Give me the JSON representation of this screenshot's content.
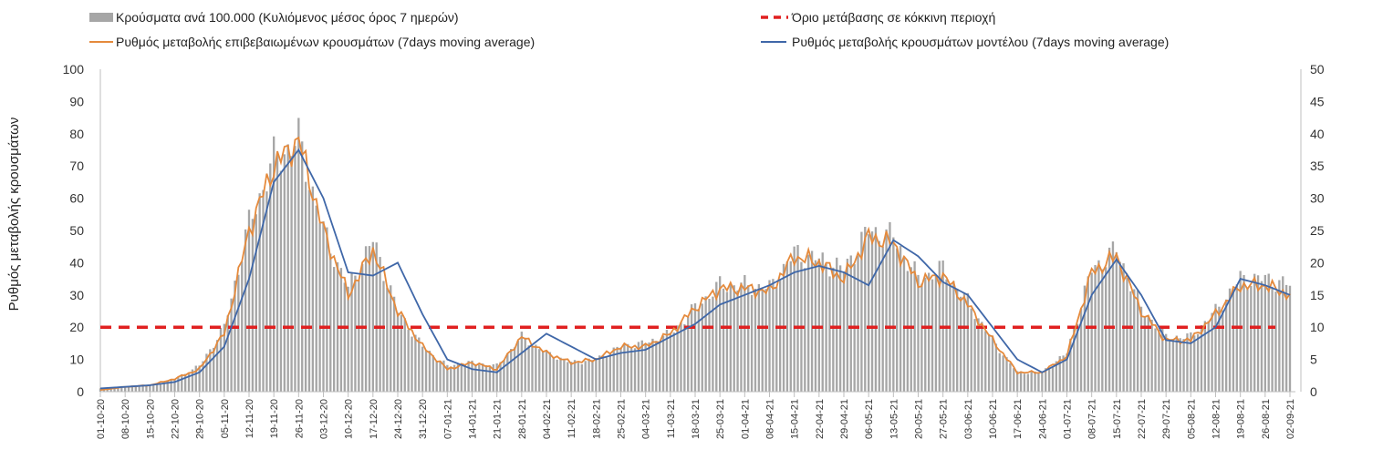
{
  "chart_data": {
    "type": "bar+line",
    "title": "",
    "ylabel": "Ρυθμός μεταβολής κρουσμάτων",
    "ylim_left": [
      0,
      100
    ],
    "ylim_right": [
      0,
      50
    ],
    "yticks_left": [
      0,
      10,
      20,
      30,
      40,
      50,
      60,
      70,
      80,
      90,
      100
    ],
    "yticks_right": [
      0,
      5,
      10,
      15,
      20,
      25,
      30,
      35,
      40,
      45,
      50
    ],
    "grid": false,
    "legend": [
      {
        "label": "Κρούσματα ανά 100.000 (Κυλιόμενος μέσος όρος 7 ημερών)",
        "color": "#a6a6a6",
        "kind": "bar"
      },
      {
        "label": "Όριο μετάβασης σε κόκκινη περιοχή",
        "color": "#e02020",
        "kind": "dashed"
      },
      {
        "label": "Ρυθμός μεταβολής επιβεβαιωμένων κρουσμάτων (7days moving average)",
        "color": "#e58a3c",
        "kind": "line"
      },
      {
        "label": "Ρυθμός μεταβολής κρουσμάτων μοντέλου (7days moving average)",
        "color": "#3f67a8",
        "kind": "line"
      }
    ],
    "x_dates": [
      "01-10-20",
      "08-10-20",
      "15-10-20",
      "22-10-20",
      "29-10-20",
      "05-11-20",
      "12-11-20",
      "19-11-20",
      "26-11-20",
      "03-12-20",
      "10-12-20",
      "17-12-20",
      "24-12-20",
      "31-12-20",
      "07-01-21",
      "14-01-21",
      "21-01-21",
      "28-01-21",
      "04-02-21",
      "11-02-21",
      "18-02-21",
      "25-02-21",
      "04-03-21",
      "11-03-21",
      "18-03-21",
      "25-03-21",
      "01-04-21",
      "08-04-21",
      "15-04-21",
      "22-04-21",
      "29-04-21",
      "06-05-21",
      "13-05-21",
      "20-05-21",
      "27-05-21",
      "03-06-21",
      "10-06-21",
      "17-06-21",
      "24-06-21",
      "01-07-21",
      "08-07-21",
      "15-07-21",
      "22-07-21",
      "29-07-21",
      "05-08-21",
      "12-08-21",
      "19-08-21",
      "26-08-21",
      "02-09-21"
    ],
    "threshold_value": 20,
    "series": [
      {
        "name": "Κρούσματα ανά 100.000 (Κυλιόμενος μέσος όρος 7 ημερών)",
        "axis": "left",
        "values": [
          1,
          1.5,
          2,
          4,
          8,
          20,
          52,
          72,
          78,
          50,
          32,
          47,
          25,
          14,
          8,
          9,
          8,
          17,
          12,
          9,
          10,
          14,
          15,
          18,
          26,
          33,
          33,
          32,
          43,
          41,
          38,
          50,
          48,
          35,
          38,
          28,
          16,
          6,
          6,
          12,
          38,
          44,
          26,
          17,
          17,
          25,
          35,
          35,
          33
        ]
      },
      {
        "name": "Ρυθμός μεταβολής επιβεβαιωμένων κρουσμάτων (7days moving average)",
        "axis": "left",
        "values": [
          0.5,
          1.5,
          2,
          4,
          7,
          18,
          50,
          70,
          78,
          50,
          30,
          44,
          25,
          14,
          7,
          9,
          7,
          17,
          12,
          9,
          10,
          14,
          14,
          18,
          26,
          32,
          32,
          31,
          42,
          40,
          35,
          48,
          46,
          34,
          36,
          27,
          16,
          6,
          6,
          11,
          37,
          42,
          25,
          16,
          16,
          24,
          33,
          33,
          30
        ]
      },
      {
        "name": "Ρυθμός μεταβολής κρουσμάτων μοντέλου (7days moving average)",
        "axis": "left",
        "values": [
          1,
          1.5,
          2,
          3,
          6,
          14,
          35,
          65,
          75,
          60,
          37,
          36,
          40,
          24,
          10,
          7,
          6,
          12,
          18,
          14,
          10,
          12,
          13,
          17,
          21,
          27,
          30,
          33,
          37,
          39,
          37,
          33,
          47,
          42,
          34,
          30,
          20,
          10,
          6,
          10,
          30,
          41,
          30,
          16,
          15,
          20,
          35,
          33,
          30
        ]
      }
    ]
  }
}
